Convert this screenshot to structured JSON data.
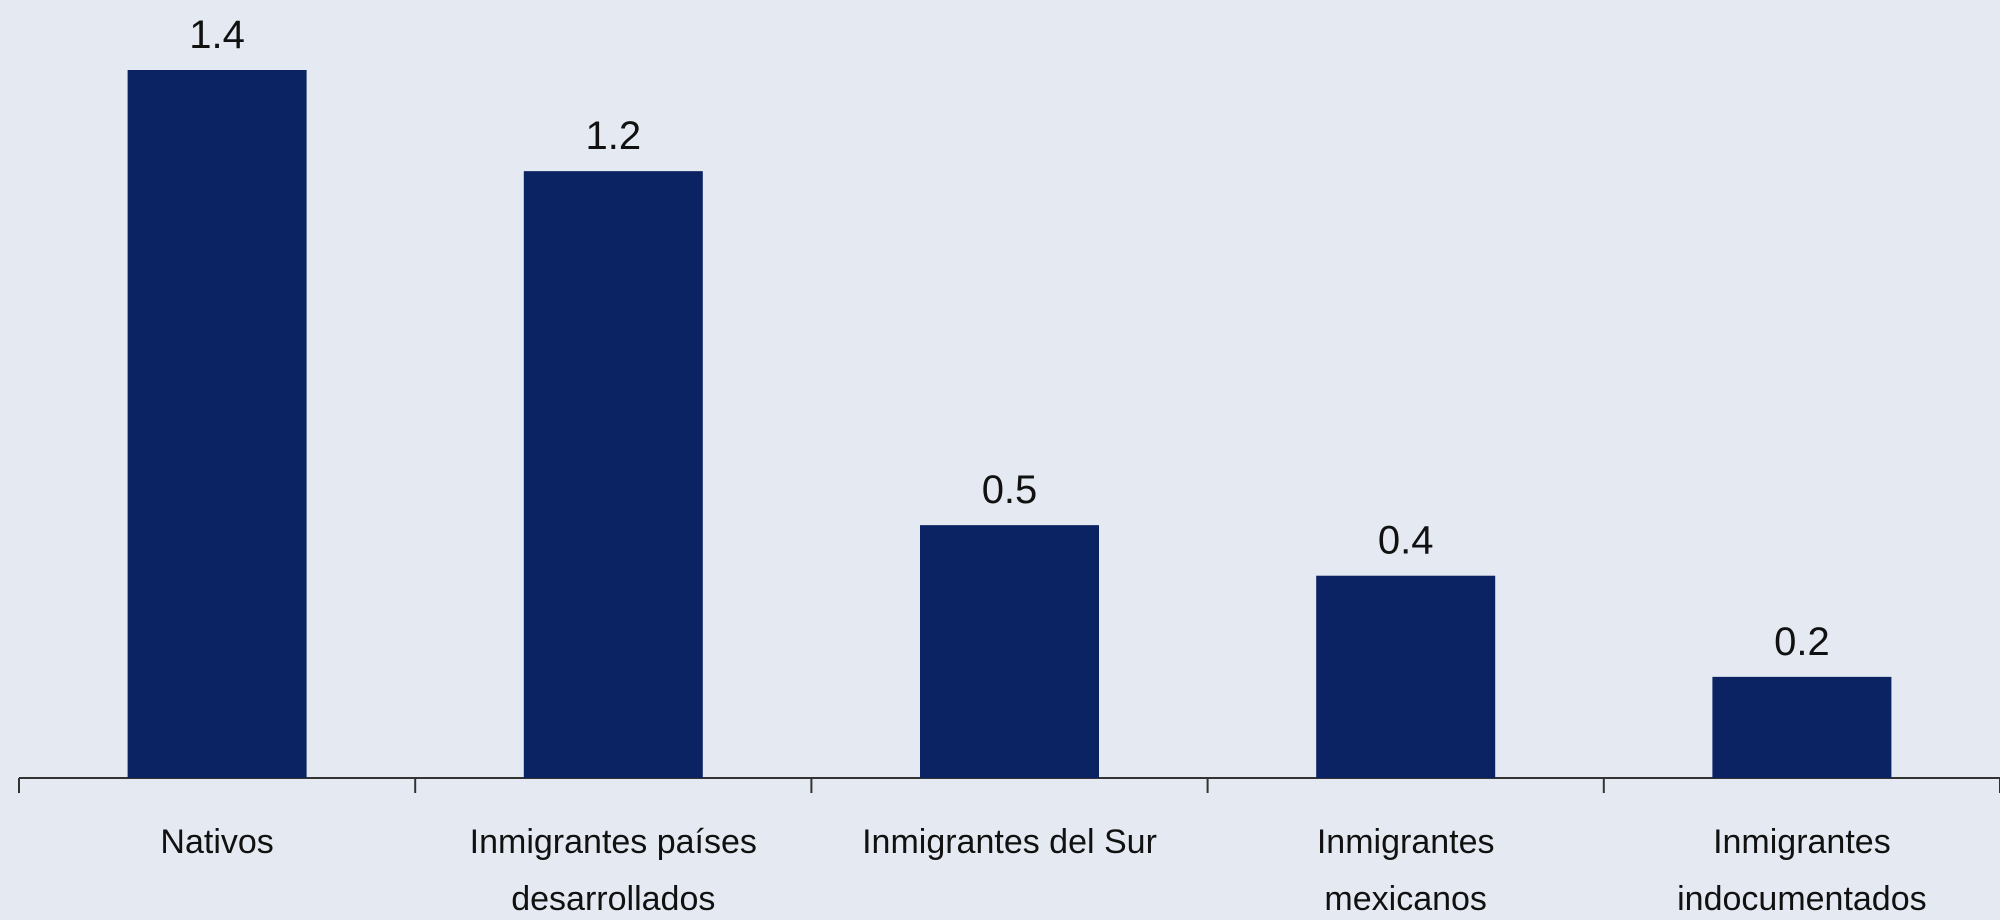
{
  "chart_data": {
    "type": "bar",
    "categories": [
      "Nativos",
      "Inmigrantes países desarrollados",
      "Inmigrantes del Sur",
      "Inmigrantes mexicanos",
      "Inmigrantes indocumentados"
    ],
    "values": [
      1.4,
      1.2,
      0.5,
      0.4,
      0.2
    ],
    "color": "#0b2363"
  }
}
